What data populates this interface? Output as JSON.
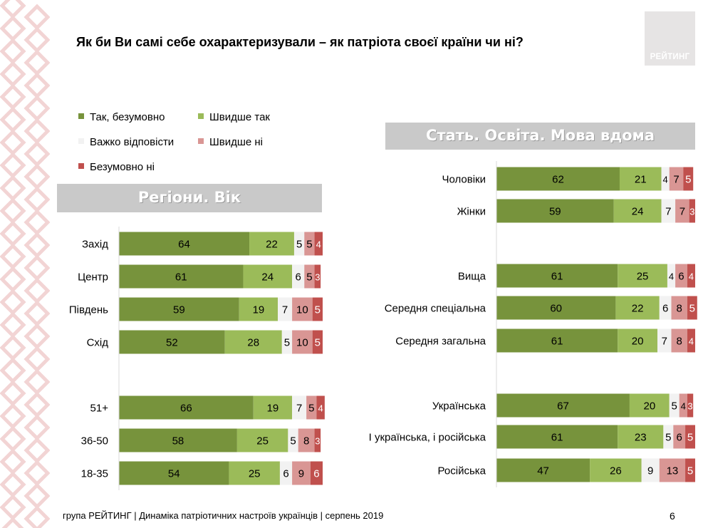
{
  "title": "Як  би Ви самі себе охарактеризували – як патріота своєї країни чи ні?",
  "logo_text": "РЕЙТИНГ",
  "footer": "група РЕЙТИНГ | Динаміка патріотичних настроїв українців | серпень  2019",
  "page_number": "6",
  "colors": {
    "definitely_yes": "#77933c",
    "rather_yes": "#9bbb59",
    "hard_to_say": "#f2f2f2",
    "rather_no": "#d99694",
    "definitely_no": "#c0504d",
    "banner": "#c9c9c9",
    "ornament": "#f2d4d4"
  },
  "legend": [
    {
      "label": "Так, безумовно",
      "color": "#77933c"
    },
    {
      "label": "Швидше так",
      "color": "#9bbb59"
    },
    {
      "label": "Важко відповісти",
      "color": "#f2f2f2"
    },
    {
      "label": "Швидше ні",
      "color": "#d99694"
    },
    {
      "label": "Безумовно ні",
      "color": "#c0504d"
    }
  ],
  "chart_data": [
    {
      "type": "bar",
      "orientation": "horizontal",
      "stacked": true,
      "title": "Регіони. Вік",
      "categories": [
        "Захід",
        "Центр",
        "Південь",
        "Схід",
        "51+",
        "36-50",
        "18-35"
      ],
      "series": [
        {
          "name": "Так, безумовно",
          "values": [
            64,
            61,
            59,
            52,
            66,
            58,
            54
          ]
        },
        {
          "name": "Швидше так",
          "values": [
            22,
            24,
            19,
            28,
            19,
            25,
            25
          ]
        },
        {
          "name": "Важко відповісти",
          "values": [
            5,
            6,
            7,
            5,
            7,
            5,
            6
          ]
        },
        {
          "name": "Швидше ні",
          "values": [
            5,
            5,
            10,
            10,
            5,
            8,
            9
          ]
        },
        {
          "name": "Безумовно ні",
          "values": [
            4,
            3,
            5,
            5,
            4,
            3,
            6
          ]
        }
      ],
      "xlim": [
        0,
        100
      ],
      "grid": false
    },
    {
      "type": "bar",
      "orientation": "horizontal",
      "stacked": true,
      "title": "Стать. Освіта. Мова вдома",
      "categories": [
        "Чоловіки",
        "Жінки",
        "Вища",
        "Середня спеціальна",
        "Середня загальна",
        "Українська",
        "І українська, і російська",
        "Російська"
      ],
      "series": [
        {
          "name": "Так, безумовно",
          "values": [
            62,
            59,
            61,
            60,
            61,
            67,
            61,
            47
          ]
        },
        {
          "name": "Швидше так",
          "values": [
            21,
            24,
            25,
            22,
            20,
            20,
            23,
            26
          ]
        },
        {
          "name": "Важко відповісти",
          "values": [
            4,
            7,
            4,
            6,
            7,
            5,
            5,
            9
          ]
        },
        {
          "name": "Швидше ні",
          "values": [
            7,
            7,
            6,
            8,
            8,
            4,
            6,
            13
          ]
        },
        {
          "name": "Безумовно ні",
          "values": [
            5,
            3,
            4,
            5,
            4,
            3,
            5,
            5
          ]
        }
      ],
      "xlim": [
        0,
        100
      ],
      "grid": false
    }
  ]
}
